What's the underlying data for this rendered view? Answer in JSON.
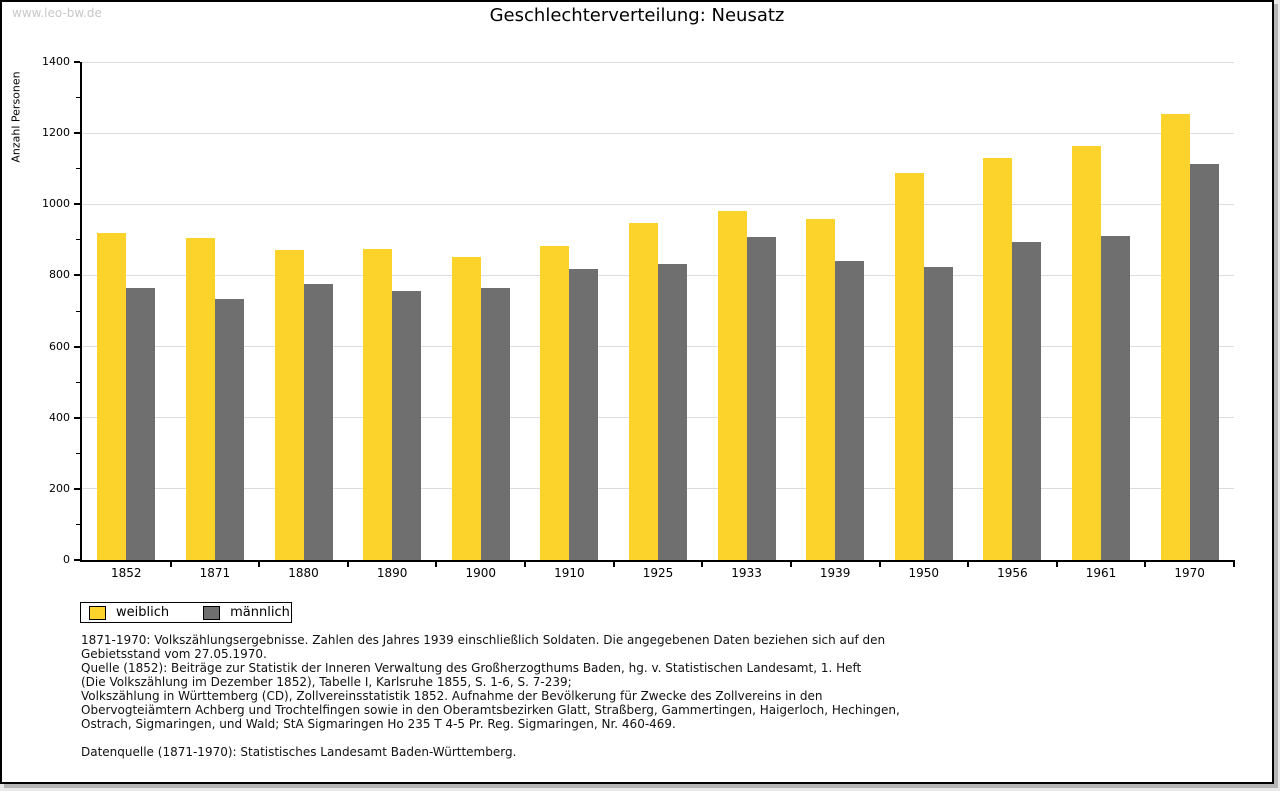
{
  "page": {
    "watermark": "www.leo-bw.de",
    "title": "Geschlechterverteilung: Neusatz"
  },
  "chart_data": {
    "type": "bar",
    "title": "Geschlechterverteilung: Neusatz",
    "xlabel": "",
    "ylabel": "Anzahl Personen",
    "ylim": [
      0,
      1400
    ],
    "ytick_step": 200,
    "ytick_minor_step": 100,
    "grid": true,
    "legend_position": "bottom-left",
    "categories": [
      "1852",
      "1871",
      "1880",
      "1890",
      "1900",
      "1910",
      "1925",
      "1933",
      "1939",
      "1950",
      "1956",
      "1961",
      "1970"
    ],
    "series": [
      {
        "name": "weiblich",
        "color": "#FCD32B",
        "values": [
          920,
          906,
          873,
          875,
          852,
          883,
          947,
          980,
          960,
          1089,
          1131,
          1165,
          1254
        ]
      },
      {
        "name": "männlich",
        "color": "#6F6F6F",
        "values": [
          766,
          735,
          775,
          757,
          765,
          819,
          833,
          909,
          840,
          825,
          895,
          911,
          1112
        ]
      }
    ]
  },
  "footer": {
    "lines": [
      "1871-1970: Volkszählungsergebnisse. Zahlen des Jahres 1939 einschließlich Soldaten. Die angegebenen Daten beziehen sich auf den",
      "Gebietsstand vom 27.05.1970.",
      "Quelle (1852): Beiträge zur Statistik der Inneren Verwaltung des Großherzogthums Baden, hg. v. Statistischen Landesamt, 1. Heft",
      "(Die Volkszählung im Dezember 1852), Tabelle I, Karlsruhe 1855, S. 1-6, S. 7-239;",
      "Volkszählung in Württemberg (CD), Zollvereinsstatistik 1852. Aufnahme der Bevölkerung für Zwecke des Zollvereins in den",
      "Obervogteiämtern Achberg und Trochtelfingen sowie in den Oberamtsbezirken Glatt, Straßberg, Gammertingen, Haigerloch, Hechingen,",
      "Ostrach, Sigmaringen, und Wald; StA Sigmaringen Ho 235 T 4-5 Pr. Reg. Sigmaringen, Nr. 460-469."
    ],
    "datasource": "Datenquelle (1871-1970): Statistisches Landesamt Baden-Württemberg."
  }
}
